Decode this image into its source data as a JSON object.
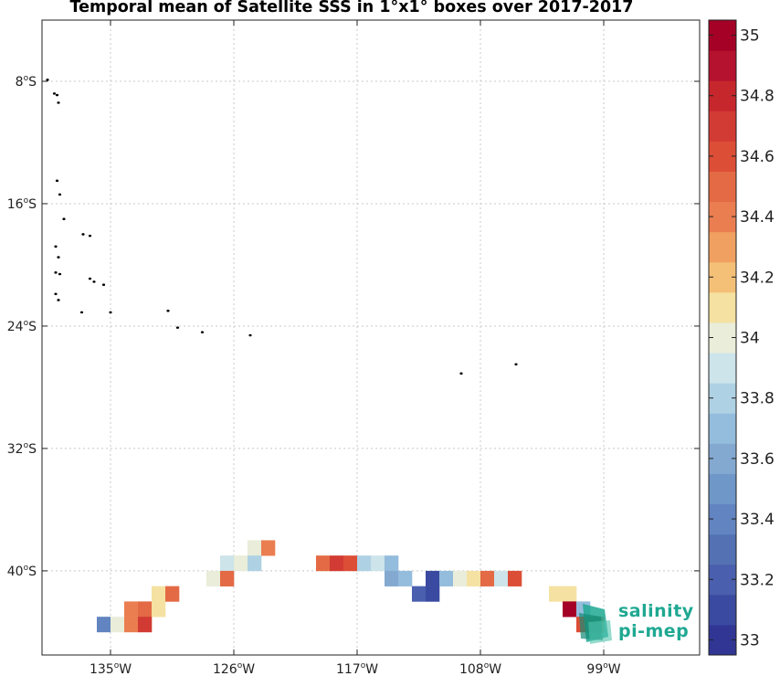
{
  "title": "Temporal mean of Satellite SSS in 1°x1° boxes over 2017-2017",
  "logo": {
    "line1": "salinity",
    "line2": "pi-mep",
    "color": "#1fa892"
  },
  "map": {
    "lon_range": [
      -140,
      -92
    ],
    "lat_range": [
      -45.5,
      -4
    ],
    "lat_ticks": [
      {
        "lat": -8,
        "deg": "8",
        "hem": "S"
      },
      {
        "lat": -16,
        "deg": "16",
        "hem": "S"
      },
      {
        "lat": -24,
        "deg": "24",
        "hem": "S"
      },
      {
        "lat": -32,
        "deg": "32",
        "hem": "S"
      },
      {
        "lat": -40,
        "deg": "40",
        "hem": "S"
      }
    ],
    "lon_ticks": [
      {
        "lon": -135,
        "deg": "135",
        "hem": "W"
      },
      {
        "lon": -126,
        "deg": "126",
        "hem": "W"
      },
      {
        "lon": -117,
        "deg": "117",
        "hem": "W"
      },
      {
        "lon": -108,
        "deg": "108",
        "hem": "W"
      },
      {
        "lon": -99,
        "deg": "99",
        "hem": "W"
      }
    ],
    "islands": [
      [
        -139.6,
        -7.9
      ],
      [
        -139.1,
        -8.8
      ],
      [
        -138.9,
        -8.9
      ],
      [
        -138.8,
        -9.4
      ],
      [
        -138.9,
        -14.5
      ],
      [
        -138.7,
        -15.4
      ],
      [
        -138.4,
        -17.0
      ],
      [
        -137.0,
        -18.0
      ],
      [
        -136.5,
        -18.1
      ],
      [
        -139.0,
        -18.8
      ],
      [
        -138.8,
        -19.5
      ],
      [
        -139.0,
        -20.5
      ],
      [
        -138.7,
        -20.6
      ],
      [
        -136.5,
        -20.9
      ],
      [
        -136.2,
        -21.1
      ],
      [
        -135.5,
        -21.3
      ],
      [
        -139.0,
        -21.9
      ],
      [
        -138.8,
        -22.3
      ],
      [
        -137.1,
        -23.1
      ],
      [
        -135.0,
        -23.1
      ],
      [
        -130.8,
        -23.0
      ],
      [
        -130.1,
        -24.1
      ],
      [
        -128.3,
        -24.4
      ],
      [
        -124.8,
        -24.6
      ],
      [
        -109.4,
        -27.1
      ],
      [
        -105.4,
        -26.5
      ]
    ]
  },
  "colorbar": {
    "vmin": 32.95,
    "vmax": 35.05,
    "ticks": [
      33,
      33.2,
      33.4,
      33.6,
      33.8,
      34,
      34.2,
      34.4,
      34.6,
      34.8,
      35
    ],
    "tick_labels": [
      "33",
      "33.2",
      "33.4",
      "33.6",
      "33.8",
      "34",
      "34.2",
      "34.4",
      "34.6",
      "34.8",
      "35"
    ],
    "colors": [
      "#313695",
      "#3a4aa0",
      "#4a5fae",
      "#5472b3",
      "#6285c1",
      "#6f97c8",
      "#84a9d1",
      "#94bcdc",
      "#aed1e3",
      "#cce4ea",
      "#e9edd9",
      "#f5e1a1",
      "#f4c077",
      "#f0a060",
      "#ea7e51",
      "#e36a44",
      "#dd4e37",
      "#d23b33",
      "#c6272d",
      "#b5122f",
      "#a50026"
    ]
  },
  "chart_data": {
    "type": "heatmap",
    "title": "Temporal mean of Satellite SSS in 1°x1° boxes over 2017-2017",
    "xlabel": "",
    "ylabel": "",
    "x_range": [
      -140,
      -92
    ],
    "y_range": [
      -45.5,
      -4
    ],
    "cell_size_deg": 1,
    "colorbar_range": [
      32.95,
      35.05
    ],
    "cells": [
      {
        "lon": -124.5,
        "lat": -38.5,
        "sss": 34.0
      },
      {
        "lon": -123.5,
        "lat": -38.5,
        "sss": 34.4
      },
      {
        "lon": -126.5,
        "lat": -39.5,
        "sss": 33.9
      },
      {
        "lon": -125.5,
        "lat": -39.5,
        "sss": 34.0
      },
      {
        "lon": -124.5,
        "lat": -39.5,
        "sss": 33.8
      },
      {
        "lon": -119.5,
        "lat": -39.5,
        "sss": 34.5
      },
      {
        "lon": -118.5,
        "lat": -39.5,
        "sss": 34.7
      },
      {
        "lon": -117.5,
        "lat": -39.5,
        "sss": 34.6
      },
      {
        "lon": -116.5,
        "lat": -39.5,
        "sss": 33.8
      },
      {
        "lon": -115.5,
        "lat": -39.5,
        "sss": 33.9
      },
      {
        "lon": -114.5,
        "lat": -39.5,
        "sss": 33.7
      },
      {
        "lon": -127.5,
        "lat": -40.5,
        "sss": 34.0
      },
      {
        "lon": -126.5,
        "lat": -40.5,
        "sss": 34.5
      },
      {
        "lon": -114.5,
        "lat": -40.5,
        "sss": 33.6
      },
      {
        "lon": -113.5,
        "lat": -40.5,
        "sss": 33.7
      },
      {
        "lon": -111.5,
        "lat": -40.5,
        "sss": 33.1
      },
      {
        "lon": -110.5,
        "lat": -40.5,
        "sss": 33.7
      },
      {
        "lon": -109.5,
        "lat": -40.5,
        "sss": 34.0
      },
      {
        "lon": -108.5,
        "lat": -40.5,
        "sss": 34.1
      },
      {
        "lon": -107.5,
        "lat": -40.5,
        "sss": 34.5
      },
      {
        "lon": -106.5,
        "lat": -40.5,
        "sss": 33.9
      },
      {
        "lon": -105.5,
        "lat": -40.5,
        "sss": 34.6
      },
      {
        "lon": -112.5,
        "lat": -41.5,
        "sss": 33.2
      },
      {
        "lon": -111.5,
        "lat": -41.5,
        "sss": 33.1
      },
      {
        "lon": -131.5,
        "lat": -41.5,
        "sss": 34.1
      },
      {
        "lon": -130.5,
        "lat": -41.5,
        "sss": 34.5
      },
      {
        "lon": -102.5,
        "lat": -41.5,
        "sss": 34.1
      },
      {
        "lon": -101.5,
        "lat": -41.5,
        "sss": 34.1
      },
      {
        "lon": -133.5,
        "lat": -42.5,
        "sss": 34.4
      },
      {
        "lon": -132.5,
        "lat": -42.5,
        "sss": 34.5
      },
      {
        "lon": -131.5,
        "lat": -42.5,
        "sss": 34.1
      },
      {
        "lon": -101.5,
        "lat": -42.5,
        "sss": 35.0
      },
      {
        "lon": -100.5,
        "lat": -42.5,
        "sss": 33.7
      },
      {
        "lon": -135.5,
        "lat": -43.5,
        "sss": 33.4
      },
      {
        "lon": -134.5,
        "lat": -43.5,
        "sss": 34.0
      },
      {
        "lon": -133.5,
        "lat": -43.5,
        "sss": 34.4
      },
      {
        "lon": -132.5,
        "lat": -43.5,
        "sss": 34.7
      },
      {
        "lon": -100.5,
        "lat": -43.5,
        "sss": 34.6
      },
      {
        "lon": -99.5,
        "lat": -43.5,
        "sss": 34.4
      }
    ]
  }
}
